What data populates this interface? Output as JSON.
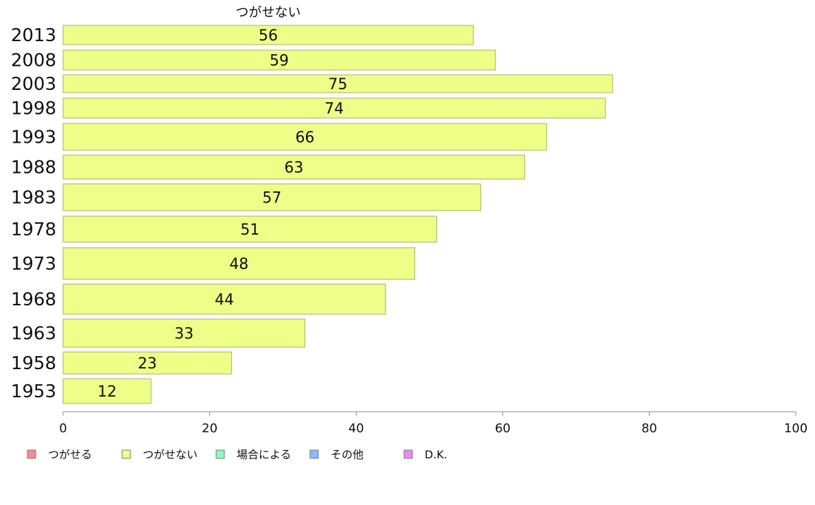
{
  "chart_data": {
    "type": "bar",
    "orientation": "horizontal",
    "series_header": "つがせない",
    "categories": [
      "2013",
      "2008",
      "2003",
      "1998",
      "1993",
      "1988",
      "1983",
      "1978",
      "1973",
      "1968",
      "1963",
      "1958",
      "1953"
    ],
    "series": [
      {
        "name": "つがせない",
        "color": "#eeff88",
        "values": [
          56,
          59,
          75,
          74,
          66,
          63,
          57,
          51,
          48,
          44,
          33,
          23,
          12
        ]
      }
    ],
    "xlim": [
      0,
      100
    ],
    "xticks": [
      "0",
      "20",
      "40",
      "60",
      "80",
      "100"
    ],
    "legend_position": "bottom",
    "legend": [
      {
        "label": "つがせる",
        "color": "#ff8888"
      },
      {
        "label": "つがせない",
        "color": "#eeff88"
      },
      {
        "label": "場合による",
        "color": "#88ffbb"
      },
      {
        "label": "その他",
        "color": "#88bbff"
      },
      {
        "label": "D.K.",
        "color": "#ee88ff"
      }
    ]
  }
}
